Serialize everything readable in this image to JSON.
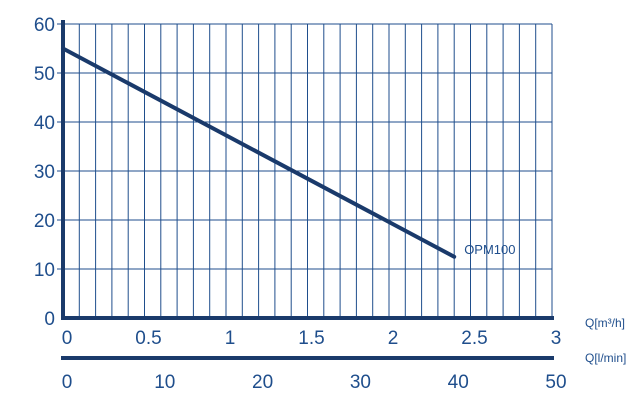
{
  "chart_data": {
    "type": "line",
    "title": "",
    "colors": {
      "line": "#1a3a6b",
      "grid": "#1f4e8c",
      "text": "#1f4e8c"
    },
    "grid": true,
    "y_axis": {
      "label": "",
      "lim": [
        0,
        60
      ],
      "ticks": [
        "0",
        "10",
        "20",
        "30",
        "40",
        "50",
        "60"
      ]
    },
    "x_axis_primary": {
      "unit_label": "Q[m³/h]",
      "lim": [
        0,
        3
      ],
      "ticks": [
        "0",
        "0.5",
        "1",
        "1.5",
        "2",
        "2.5",
        "3"
      ]
    },
    "x_axis_secondary": {
      "unit_label": "Q[l/min]",
      "lim": [
        0,
        50
      ],
      "ticks": [
        "0",
        "10",
        "20",
        "30",
        "40",
        "50"
      ]
    },
    "series": [
      {
        "name": "OPM100",
        "x": [
          0,
          2.4
        ],
        "y": [
          55,
          12.5
        ]
      }
    ]
  }
}
